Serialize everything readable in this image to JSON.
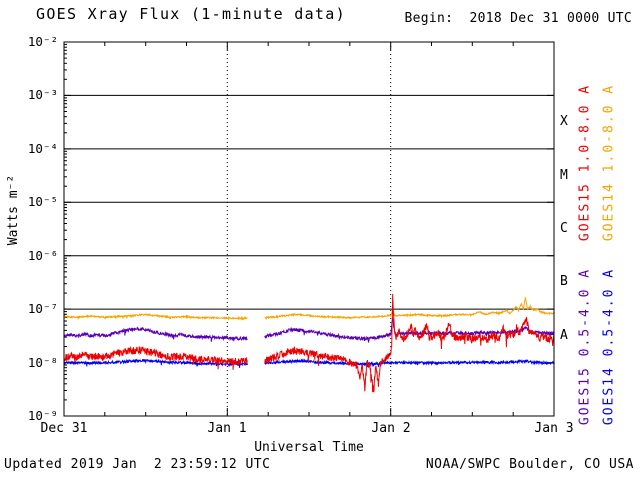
{
  "window": {
    "background": "#ffffff"
  },
  "header": {
    "title": "GOES Xray Flux (1-minute data)",
    "begin_label": "Begin:  2018 Dec 31 0000 UTC"
  },
  "footer": {
    "updated": "Updated 2019 Jan  2 23:59:12 UTC",
    "credit": "NOAA/SWPC Boulder, CO USA"
  },
  "axes": {
    "ylabel": "Watts m⁻²",
    "xlabel": "Universal Time"
  },
  "legend": [
    {
      "label": "GOES15 1.0-8.0 A",
      "color": "#ee0000"
    },
    {
      "label": "GOES14 1.0-8.0 A",
      "color": "#f5a400"
    },
    {
      "label": "GOES15 0.5-4.0 A",
      "color": "#5a00b4"
    },
    {
      "label": "GOES14 0.5-4.0 A",
      "color": "#0000ee"
    }
  ],
  "chart_data": {
    "type": "line",
    "title": "GOES Xray Flux (1-minute data)",
    "begin": "2018 Dec 31 0000 UTC",
    "x_axis": {
      "label": "Universal Time",
      "unit": "hours since 2018-12-31 00:00 UTC",
      "range_hours": [
        0,
        72
      ],
      "major_ticks": [
        {
          "hour": 0,
          "label": "Dec 31"
        },
        {
          "hour": 24,
          "label": "Jan 1"
        },
        {
          "hour": 48,
          "label": "Jan 2"
        },
        {
          "hour": 72,
          "label": "Jan 3"
        }
      ],
      "minor_tick_step_hours": 6,
      "dotted_gridline_hours": [
        24,
        48
      ]
    },
    "y_axis": {
      "label": "Watts m⁻²",
      "scale": "log10",
      "range_exponents": [
        -9,
        -2
      ],
      "tick_exponents": [
        -2,
        -3,
        -4,
        -5,
        -6,
        -7,
        -8,
        -9
      ],
      "tick_labels": [
        "10⁻²",
        "10⁻³",
        "10⁻⁴",
        "10⁻⁵",
        "10⁻⁶",
        "10⁻⁷",
        "10⁻⁸",
        "10⁻⁹"
      ],
      "solid_gridline_exponents": [
        -3,
        -4,
        -5,
        -6,
        -7
      ]
    },
    "flare_classes": [
      {
        "label": "X",
        "center_exponent": -3.5
      },
      {
        "label": "M",
        "center_exponent": -4.5
      },
      {
        "label": "C",
        "center_exponent": -5.5
      },
      {
        "label": "B",
        "center_exponent": -6.5
      },
      {
        "label": "A",
        "center_exponent": -7.5
      }
    ],
    "data_gap_hours": [
      27.0,
      29.5
    ],
    "series": [
      {
        "name": "GOES15 1.0-8.0 A",
        "color": "#ee0000",
        "noise_log10": 0.07,
        "points": [
          [
            0,
            -7.92
          ],
          [
            1,
            -7.88
          ],
          [
            2,
            -7.9
          ],
          [
            3,
            -7.85
          ],
          [
            4,
            -7.9
          ],
          [
            5,
            -7.88
          ],
          [
            6,
            -7.9
          ],
          [
            7,
            -7.85
          ],
          [
            8,
            -7.82
          ],
          [
            9,
            -7.8
          ],
          [
            10,
            -7.78
          ],
          [
            11,
            -7.76
          ],
          [
            12,
            -7.78
          ],
          [
            13,
            -7.82
          ],
          [
            14,
            -7.85
          ],
          [
            15,
            -7.88
          ],
          [
            16,
            -7.9
          ],
          [
            17,
            -7.88
          ],
          [
            18,
            -7.9
          ],
          [
            19,
            -7.92
          ],
          [
            20,
            -7.95
          ],
          [
            21,
            -7.93
          ],
          [
            22,
            -7.95
          ],
          [
            23,
            -7.97
          ],
          [
            24,
            -7.97
          ],
          [
            26,
            -7.98
          ],
          [
            29.5,
            -7.96
          ],
          [
            30,
            -7.95
          ],
          [
            31,
            -7.9
          ],
          [
            32,
            -7.85
          ],
          [
            33,
            -7.8
          ],
          [
            34,
            -7.78
          ],
          [
            35,
            -7.8
          ],
          [
            36,
            -7.82
          ],
          [
            37,
            -7.85
          ],
          [
            38,
            -7.88
          ],
          [
            39,
            -7.9
          ],
          [
            40,
            -7.92
          ],
          [
            41,
            -7.95
          ],
          [
            42,
            -8.0
          ],
          [
            43,
            -8.05
          ],
          [
            43.5,
            -8.3
          ],
          [
            43.8,
            -8.0
          ],
          [
            44.2,
            -8.5
          ],
          [
            44.5,
            -8.0
          ],
          [
            45,
            -8.1
          ],
          [
            45.5,
            -8.55
          ],
          [
            45.8,
            -8.05
          ],
          [
            46.2,
            -8.4
          ],
          [
            46.5,
            -8.0
          ],
          [
            47,
            -7.95
          ],
          [
            47.5,
            -7.88
          ],
          [
            48,
            -7.8
          ],
          [
            48.15,
            -7.7
          ],
          [
            48.3,
            -6.73
          ],
          [
            48.55,
            -7.45
          ],
          [
            48.8,
            -7.55
          ],
          [
            49.3,
            -7.35
          ],
          [
            49.6,
            -7.55
          ],
          [
            50,
            -7.55
          ],
          [
            50.5,
            -7.45
          ],
          [
            51,
            -7.3
          ],
          [
            51.3,
            -7.5
          ],
          [
            51.6,
            -7.35
          ],
          [
            52,
            -7.55
          ],
          [
            52.5,
            -7.5
          ],
          [
            53,
            -7.4
          ],
          [
            53.3,
            -7.25
          ],
          [
            53.6,
            -7.5
          ],
          [
            54,
            -7.55
          ],
          [
            54.5,
            -7.5
          ],
          [
            55,
            -7.45
          ],
          [
            55.5,
            -7.55
          ],
          [
            56,
            -7.5
          ],
          [
            56.6,
            -7.25
          ],
          [
            57,
            -7.5
          ],
          [
            58,
            -7.55
          ],
          [
            59,
            -7.5
          ],
          [
            60,
            -7.55
          ],
          [
            61,
            -7.5
          ],
          [
            62,
            -7.55
          ],
          [
            63,
            -7.5
          ],
          [
            64,
            -7.55
          ],
          [
            64.5,
            -7.32
          ],
          [
            65,
            -7.5
          ],
          [
            65.5,
            -7.45
          ],
          [
            66,
            -7.5
          ],
          [
            66.5,
            -7.35
          ],
          [
            67,
            -7.45
          ],
          [
            67.5,
            -7.3
          ],
          [
            68,
            -7.18
          ],
          [
            68.3,
            -7.4
          ],
          [
            69,
            -7.45
          ],
          [
            69.5,
            -7.5
          ],
          [
            70,
            -7.55
          ],
          [
            70.5,
            -7.5
          ],
          [
            71,
            -7.55
          ],
          [
            72,
            -7.55
          ]
        ]
      },
      {
        "name": "GOES14 1.0-8.0 A",
        "color": "#f5a400",
        "noise_log10": 0.013,
        "points": [
          [
            0,
            -7.14
          ],
          [
            2,
            -7.15
          ],
          [
            4,
            -7.13
          ],
          [
            6,
            -7.15
          ],
          [
            8,
            -7.14
          ],
          [
            10,
            -7.12
          ],
          [
            12,
            -7.1
          ],
          [
            14,
            -7.13
          ],
          [
            16,
            -7.15
          ],
          [
            18,
            -7.14
          ],
          [
            20,
            -7.16
          ],
          [
            22,
            -7.16
          ],
          [
            24,
            -7.17
          ],
          [
            26,
            -7.17
          ],
          [
            29.5,
            -7.16
          ],
          [
            32,
            -7.13
          ],
          [
            34,
            -7.1
          ],
          [
            36,
            -7.12
          ],
          [
            38,
            -7.14
          ],
          [
            40,
            -7.15
          ],
          [
            42,
            -7.16
          ],
          [
            44,
            -7.15
          ],
          [
            46,
            -7.14
          ],
          [
            48,
            -7.12
          ],
          [
            48.3,
            -7.02
          ],
          [
            48.6,
            -7.12
          ],
          [
            50,
            -7.12
          ],
          [
            52,
            -7.1
          ],
          [
            54,
            -7.12
          ],
          [
            56,
            -7.12
          ],
          [
            58,
            -7.1
          ],
          [
            60,
            -7.1
          ],
          [
            61,
            -7.05
          ],
          [
            62,
            -7.1
          ],
          [
            63,
            -7.06
          ],
          [
            64,
            -7.08
          ],
          [
            65,
            -7.02
          ],
          [
            65.5,
            -7.08
          ],
          [
            66,
            -7.02
          ],
          [
            66.5,
            -6.95
          ],
          [
            66.8,
            -7.02
          ],
          [
            67.2,
            -6.9
          ],
          [
            67.5,
            -7.0
          ],
          [
            67.8,
            -6.78
          ],
          [
            68.1,
            -7.0
          ],
          [
            68.5,
            -6.95
          ],
          [
            69,
            -7.02
          ],
          [
            69.5,
            -7.0
          ],
          [
            70,
            -7.05
          ],
          [
            71,
            -7.08
          ],
          [
            72,
            -7.08
          ]
        ]
      },
      {
        "name": "GOES15 0.5-4.0 A",
        "color": "#5a00b4",
        "noise_log10": 0.03,
        "points": [
          [
            0,
            -7.5
          ],
          [
            1,
            -7.47
          ],
          [
            2,
            -7.5
          ],
          [
            3,
            -7.46
          ],
          [
            4,
            -7.5
          ],
          [
            5,
            -7.48
          ],
          [
            6,
            -7.5
          ],
          [
            7,
            -7.46
          ],
          [
            8,
            -7.43
          ],
          [
            9,
            -7.4
          ],
          [
            10,
            -7.38
          ],
          [
            11,
            -7.37
          ],
          [
            12,
            -7.38
          ],
          [
            13,
            -7.42
          ],
          [
            14,
            -7.45
          ],
          [
            15,
            -7.47
          ],
          [
            16,
            -7.5
          ],
          [
            17,
            -7.48
          ],
          [
            18,
            -7.5
          ],
          [
            19,
            -7.51
          ],
          [
            20,
            -7.52
          ],
          [
            21,
            -7.52
          ],
          [
            22,
            -7.53
          ],
          [
            23,
            -7.54
          ],
          [
            24,
            -7.54
          ],
          [
            26,
            -7.55
          ],
          [
            29.5,
            -7.53
          ],
          [
            30,
            -7.5
          ],
          [
            31,
            -7.47
          ],
          [
            32,
            -7.44
          ],
          [
            33,
            -7.4
          ],
          [
            34,
            -7.38
          ],
          [
            35,
            -7.4
          ],
          [
            36,
            -7.42
          ],
          [
            37,
            -7.44
          ],
          [
            38,
            -7.46
          ],
          [
            39,
            -7.48
          ],
          [
            40,
            -7.5
          ],
          [
            41,
            -7.52
          ],
          [
            42,
            -7.53
          ],
          [
            43,
            -7.54
          ],
          [
            44,
            -7.55
          ],
          [
            45,
            -7.54
          ],
          [
            46,
            -7.53
          ],
          [
            47,
            -7.5
          ],
          [
            48,
            -7.47
          ],
          [
            48.3,
            -7.15
          ],
          [
            48.6,
            -7.45
          ],
          [
            50,
            -7.46
          ],
          [
            51,
            -7.44
          ],
          [
            52,
            -7.45
          ],
          [
            53,
            -7.44
          ],
          [
            54,
            -7.46
          ],
          [
            55,
            -7.45
          ],
          [
            56,
            -7.46
          ],
          [
            57,
            -7.44
          ],
          [
            58,
            -7.45
          ],
          [
            59,
            -7.45
          ],
          [
            60,
            -7.46
          ],
          [
            61,
            -7.44
          ],
          [
            62,
            -7.45
          ],
          [
            63,
            -7.44
          ],
          [
            64,
            -7.45
          ],
          [
            65,
            -7.43
          ],
          [
            66,
            -7.42
          ],
          [
            67,
            -7.4
          ],
          [
            68,
            -7.35
          ],
          [
            68.5,
            -7.42
          ],
          [
            69,
            -7.43
          ],
          [
            70,
            -7.45
          ],
          [
            71,
            -7.45
          ],
          [
            72,
            -7.46
          ]
        ]
      },
      {
        "name": "GOES14 0.5-4.0 A",
        "color": "#0000ee",
        "noise_log10": 0.022,
        "points": [
          [
            0,
            -8.0
          ],
          [
            2,
            -8.0
          ],
          [
            4,
            -8.01
          ],
          [
            6,
            -8.0
          ],
          [
            8,
            -7.99
          ],
          [
            10,
            -7.97
          ],
          [
            12,
            -7.96
          ],
          [
            14,
            -7.98
          ],
          [
            16,
            -8.0
          ],
          [
            18,
            -8.0
          ],
          [
            20,
            -8.02
          ],
          [
            22,
            -8.02
          ],
          [
            24,
            -8.03
          ],
          [
            26,
            -8.03
          ],
          [
            29.5,
            -8.01
          ],
          [
            32,
            -7.99
          ],
          [
            34,
            -7.97
          ],
          [
            36,
            -7.98
          ],
          [
            38,
            -8.0
          ],
          [
            40,
            -8.01
          ],
          [
            42,
            -8.02
          ],
          [
            44,
            -8.03
          ],
          [
            46,
            -8.02
          ],
          [
            48,
            -8.0
          ],
          [
            50,
            -8.0
          ],
          [
            52,
            -8.0
          ],
          [
            54,
            -8.01
          ],
          [
            56,
            -8.0
          ],
          [
            58,
            -8.0
          ],
          [
            60,
            -8.0
          ],
          [
            62,
            -7.99
          ],
          [
            64,
            -8.0
          ],
          [
            66,
            -7.99
          ],
          [
            68,
            -7.97
          ],
          [
            69,
            -8.0
          ],
          [
            70,
            -8.0
          ],
          [
            71,
            -8.01
          ],
          [
            72,
            -8.0
          ]
        ]
      }
    ]
  }
}
